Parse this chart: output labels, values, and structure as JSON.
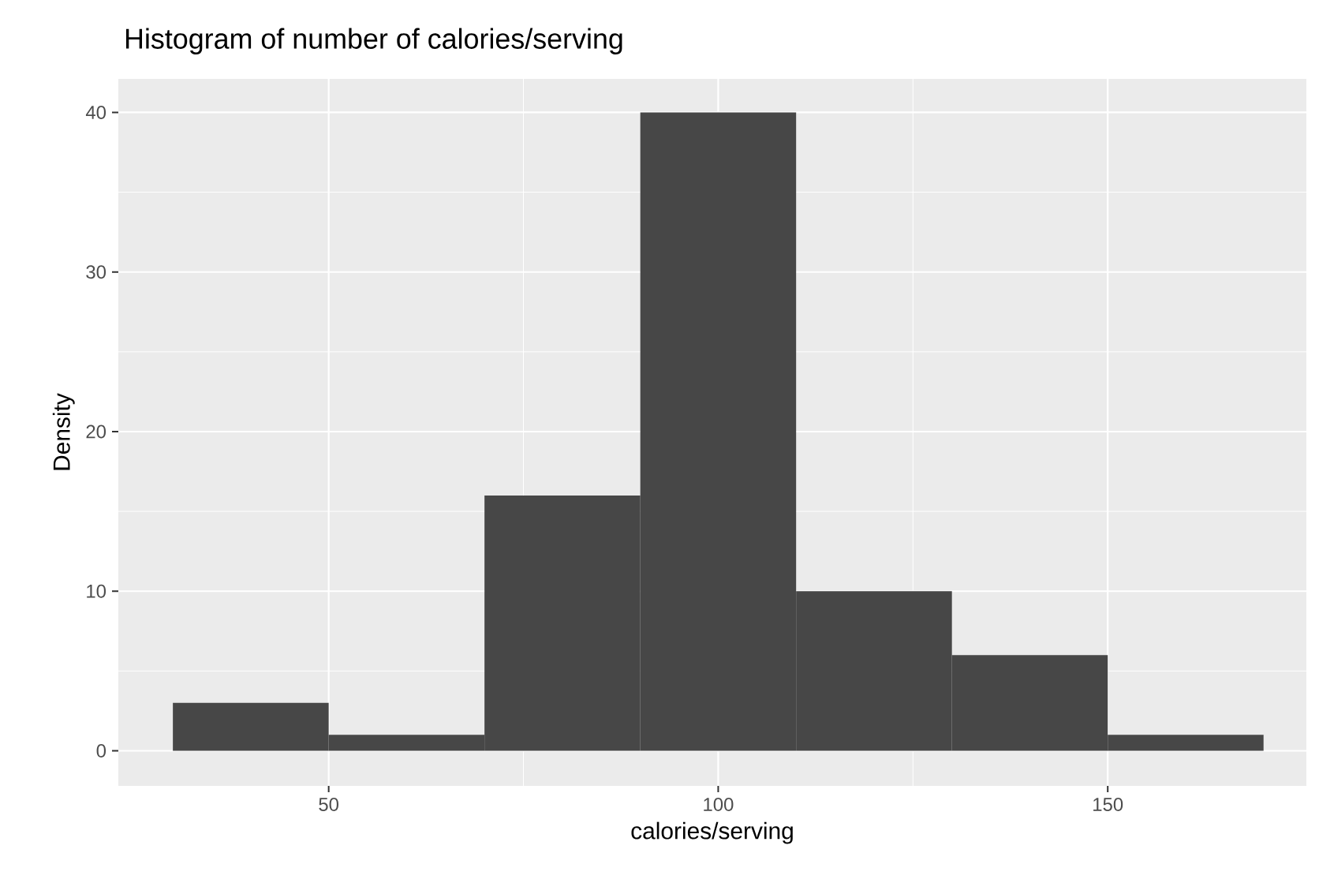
{
  "chart_data": {
    "type": "histogram",
    "title": "Histogram of number of calories/serving",
    "xlabel": "calories/serving",
    "ylabel": "Density",
    "bins": [
      30,
      50,
      70,
      90,
      110,
      130,
      150,
      170
    ],
    "values": [
      3,
      1,
      16,
      40,
      10,
      6,
      1
    ],
    "color": "#474747",
    "xlim": [
      23,
      175.5
    ],
    "ylim": [
      -2.2,
      42.1
    ],
    "xticks": [
      50,
      100,
      150
    ],
    "yticks": [
      0,
      10,
      20,
      30,
      40
    ],
    "grid": true
  }
}
